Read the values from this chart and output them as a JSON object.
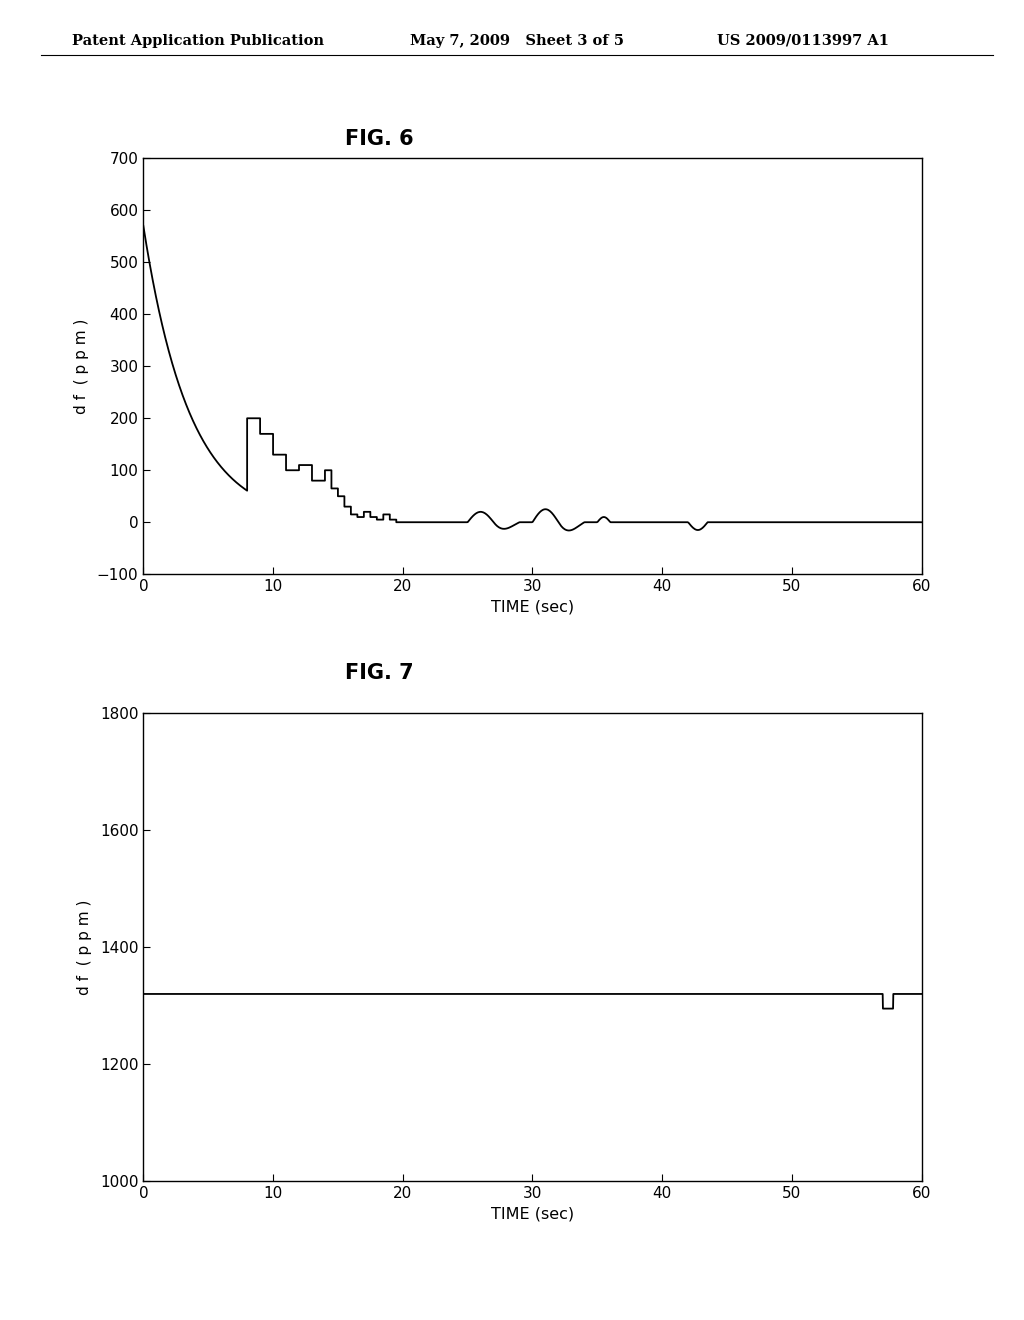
{
  "header_left": "Patent Application Publication",
  "header_mid": "May 7, 2009   Sheet 3 of 5",
  "header_right": "US 2009/0113997 A1",
  "fig6_title": "FIG. 6",
  "fig7_title": "FIG. 7",
  "fig6_ylabel": "d f  ( p p m )",
  "fig7_ylabel": "d f  ( p p m )",
  "fig6_xlabel": "TIME (sec)",
  "fig7_xlabel": "TIME (sec)",
  "fig6_xlim": [
    0,
    60
  ],
  "fig6_ylim": [
    -100,
    700
  ],
  "fig6_yticks": [
    -100,
    0,
    100,
    200,
    300,
    400,
    500,
    600,
    700
  ],
  "fig6_xticks": [
    0,
    10,
    20,
    30,
    40,
    50,
    60
  ],
  "fig7_xlim": [
    0,
    60
  ],
  "fig7_ylim": [
    1000,
    1800
  ],
  "fig7_yticks": [
    1000,
    1200,
    1400,
    1600,
    1800
  ],
  "fig7_xticks": [
    0,
    10,
    20,
    30,
    40,
    50,
    60
  ],
  "background_color": "#ffffff",
  "line_color": "#000000"
}
